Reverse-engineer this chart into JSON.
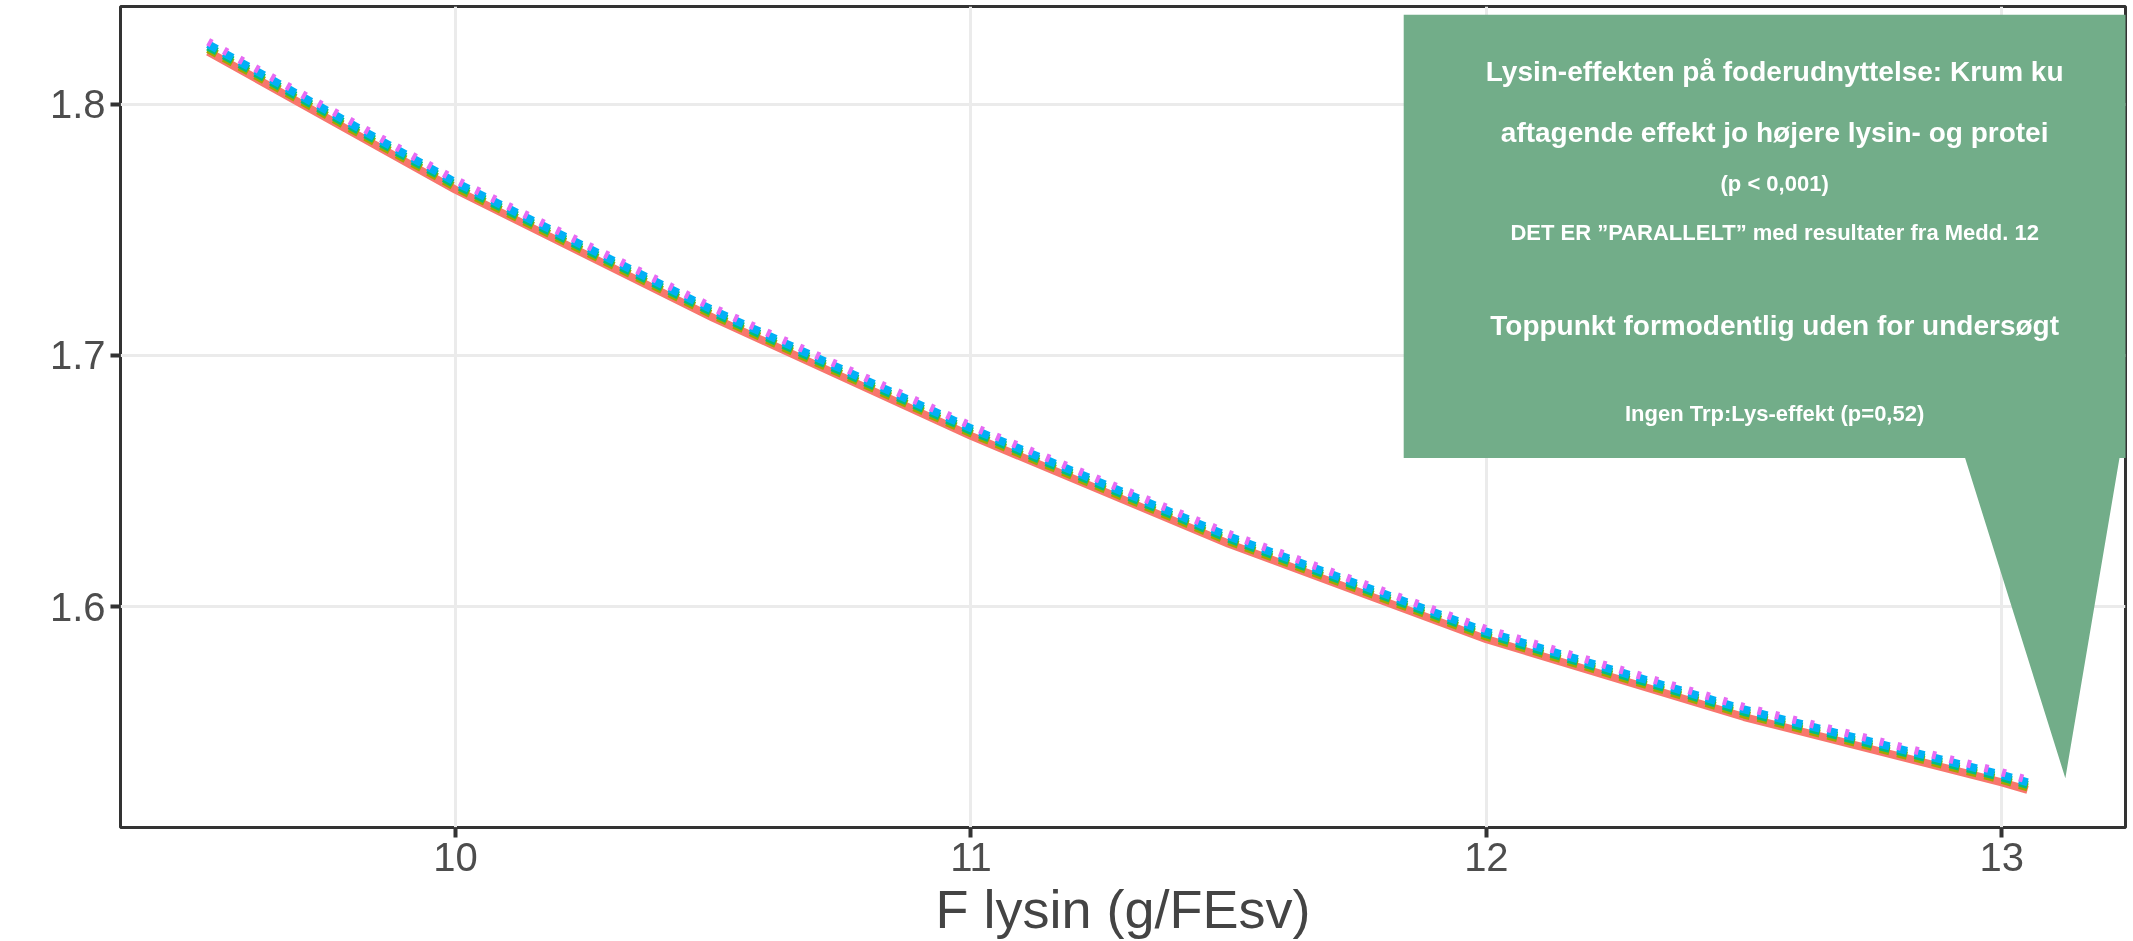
{
  "chart_data": {
    "type": "line",
    "xlabel": "F lysin (g/FEsv)",
    "x": [
      9.52,
      10,
      10.5,
      11,
      11.5,
      12,
      12.5,
      13,
      13.05
    ],
    "series": [
      {
        "color": "#f8766d",
        "line_style": "solid",
        "values": [
          1.821,
          1.766,
          1.715,
          1.668,
          1.625,
          1.587,
          1.556,
          1.53,
          1.527
        ]
      },
      {
        "color": "#a3a500",
        "line_style": "dashed",
        "values": [
          1.822,
          1.767,
          1.716,
          1.669,
          1.626,
          1.588,
          1.557,
          1.531,
          1.528
        ]
      },
      {
        "color": "#00bf7d",
        "line_style": "dashed",
        "values": [
          1.823,
          1.768,
          1.717,
          1.67,
          1.627,
          1.589,
          1.558,
          1.532,
          1.529
        ]
      },
      {
        "color": "#00b0f6",
        "line_style": "dashed",
        "values": [
          1.824,
          1.769,
          1.718,
          1.671,
          1.628,
          1.59,
          1.559,
          1.533,
          1.53
        ]
      },
      {
        "color": "#e76bf3",
        "line_style": "dotted",
        "values": [
          1.825,
          1.77,
          1.719,
          1.672,
          1.629,
          1.591,
          1.56,
          1.534,
          1.531
        ]
      }
    ],
    "xlim": [
      9.35,
      13.24
    ],
    "ylim": [
      1.512,
      1.839
    ],
    "xticks": [
      10,
      11,
      12,
      13
    ],
    "yticks": [
      1.6,
      1.7,
      1.8
    ],
    "grid": true,
    "annotations": [
      "Lysin-effekten på foderudnyttelse: Krum ku",
      "aftagende effekt jo højere lysin- og protei",
      "(p < 0,001)",
      "DET ER ”PARALLELT” med resultater fra Medd. 12",
      "Toppunkt formodentlig uden for undersøgt",
      "Ingen Trp:Lys-effekt (p=0,52)"
    ]
  }
}
